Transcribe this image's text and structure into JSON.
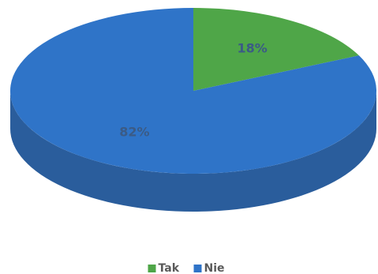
{
  "chart_data": {
    "type": "pie",
    "categories": [
      "Tak",
      "Nie"
    ],
    "values": [
      18,
      82
    ],
    "value_labels": [
      "18%",
      "82%"
    ],
    "colors": [
      "#4fa648",
      "#2f74c8"
    ],
    "side_color": "#2a5d9c",
    "legend": "bottom"
  }
}
